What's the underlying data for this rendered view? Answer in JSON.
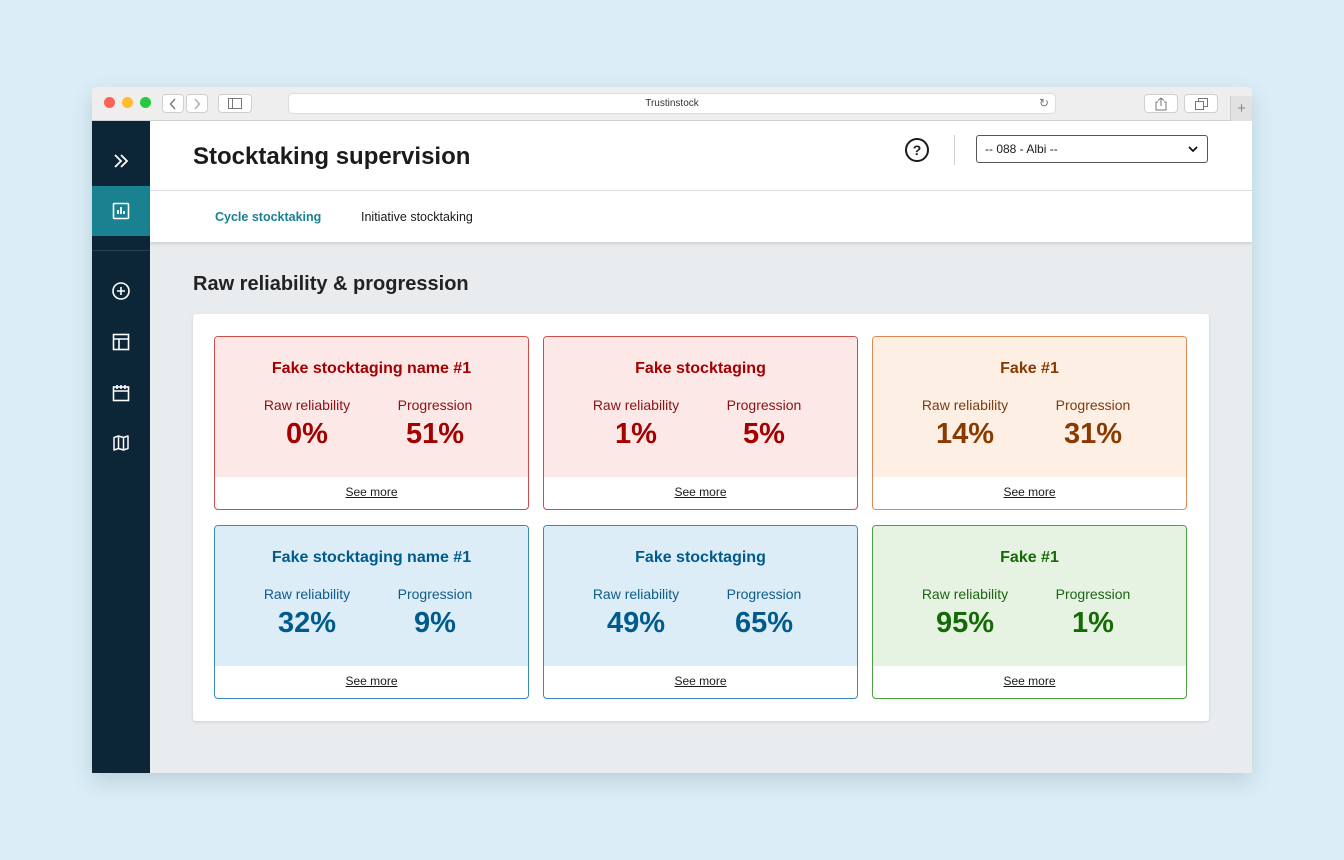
{
  "browser": {
    "url_title": "Trustinstock"
  },
  "header": {
    "title": "Stocktaking supervision",
    "store_select": {
      "selected": "-- 088 - Albi --"
    }
  },
  "tabs": [
    {
      "label": "Cycle stocktaking",
      "active": true
    },
    {
      "label": "Initiative stocktaking",
      "active": false
    }
  ],
  "section": {
    "title": "Raw reliability & progression"
  },
  "card_labels": {
    "reliability": "Raw reliability",
    "progression": "Progression",
    "see_more": "See more"
  },
  "cards": [
    {
      "name": "Fake stocktaging name #1",
      "reliability": "0%",
      "progression": "51%",
      "status": "red"
    },
    {
      "name": "Fake stocktaging",
      "reliability": "1%",
      "progression": "5%",
      "status": "red"
    },
    {
      "name": "Fake #1",
      "reliability": "14%",
      "progression": "31%",
      "status": "orange"
    },
    {
      "name": "Fake stocktaging name #1",
      "reliability": "32%",
      "progression": "9%",
      "status": "blue"
    },
    {
      "name": "Fake stocktaging",
      "reliability": "49%",
      "progression": "65%",
      "status": "blue"
    },
    {
      "name": "Fake #1",
      "reliability": "95%",
      "progression": "1%",
      "status": "green"
    }
  ],
  "colors": {
    "sidebar": "#0c2537",
    "accent": "#1a8191"
  }
}
